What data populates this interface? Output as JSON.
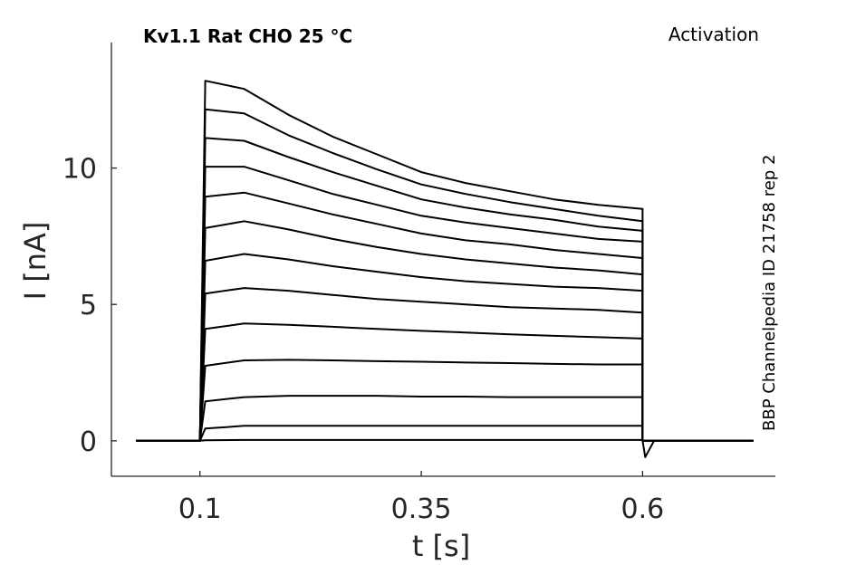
{
  "header": {
    "title": "Kv1.1  Rat  CHO  25 °C",
    "protocol": "Activation",
    "source": "BBP Channelpedia ID 21758 rep 2"
  },
  "chart_data": {
    "type": "line",
    "xlabel": "t [s]",
    "ylabel": "I [nA]",
    "xlim": [
      -0.0,
      0.75
    ],
    "ylim": [
      -1.3,
      14.6
    ],
    "xticks": [
      0.1,
      0.35,
      0.6
    ],
    "xtick_labels": [
      "0.1",
      "0.35",
      "0.6"
    ],
    "yticks": [
      0,
      5,
      10
    ],
    "ytick_labels": [
      "0",
      "5",
      "10"
    ],
    "grid": false,
    "colors": {
      "trace": "#000000",
      "axis": "#262626"
    },
    "pulse": {
      "start": 0.1,
      "end": 0.6,
      "trace_start": 0.028,
      "trace_end": 0.725
    },
    "time_points": [
      0.1,
      0.106,
      0.15,
      0.2,
      0.25,
      0.3,
      0.35,
      0.4,
      0.45,
      0.5,
      0.55,
      0.6
    ],
    "series": [
      {
        "values": [
          0,
          0.02,
          0.03,
          0.03,
          0.03,
          0.03,
          0.03,
          0.03,
          0.03,
          0.03,
          0.03,
          0.03
        ]
      },
      {
        "values": [
          0,
          0.45,
          0.55,
          0.55,
          0.55,
          0.55,
          0.55,
          0.55,
          0.55,
          0.55,
          0.55,
          0.55
        ]
      },
      {
        "values": [
          0,
          1.45,
          1.6,
          1.65,
          1.65,
          1.65,
          1.62,
          1.62,
          1.6,
          1.6,
          1.6,
          1.6
        ]
      },
      {
        "values": [
          0,
          2.75,
          2.95,
          2.97,
          2.95,
          2.92,
          2.9,
          2.87,
          2.85,
          2.82,
          2.8,
          2.8
        ]
      },
      {
        "values": [
          0,
          4.1,
          4.3,
          4.25,
          4.18,
          4.1,
          4.03,
          3.97,
          3.9,
          3.85,
          3.8,
          3.75
        ]
      },
      {
        "values": [
          0,
          5.4,
          5.6,
          5.5,
          5.35,
          5.2,
          5.1,
          5.0,
          4.9,
          4.85,
          4.8,
          4.7
        ]
      },
      {
        "values": [
          0,
          6.6,
          6.85,
          6.65,
          6.4,
          6.2,
          6.0,
          5.85,
          5.75,
          5.65,
          5.6,
          5.5
        ]
      },
      {
        "values": [
          0,
          7.8,
          8.05,
          7.75,
          7.4,
          7.1,
          6.85,
          6.65,
          6.5,
          6.35,
          6.25,
          6.1
        ]
      },
      {
        "values": [
          0,
          8.95,
          9.1,
          8.7,
          8.3,
          7.95,
          7.6,
          7.35,
          7.2,
          7.0,
          6.85,
          6.7
        ]
      },
      {
        "values": [
          0,
          10.05,
          10.05,
          9.55,
          9.05,
          8.65,
          8.25,
          8.0,
          7.8,
          7.6,
          7.4,
          7.3
        ]
      },
      {
        "values": [
          0,
          11.1,
          11.0,
          10.4,
          9.85,
          9.35,
          8.85,
          8.55,
          8.3,
          8.1,
          7.85,
          7.7
        ]
      },
      {
        "values": [
          0,
          12.15,
          12.0,
          11.2,
          10.55,
          9.95,
          9.4,
          9.05,
          8.75,
          8.5,
          8.25,
          8.05
        ]
      },
      {
        "values": [
          0,
          13.2,
          12.9,
          11.95,
          11.15,
          10.5,
          9.85,
          9.45,
          9.15,
          8.85,
          8.65,
          8.5
        ]
      }
    ],
    "tail": {
      "time": 0.603,
      "value": -0.6
    }
  }
}
